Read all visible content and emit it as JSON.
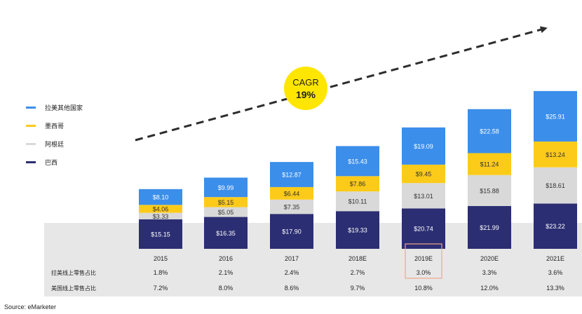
{
  "chart_data": {
    "type": "bar",
    "stacked": true,
    "categories": [
      "2015",
      "2016",
      "2017",
      "2018E",
      "2019E",
      "2020E",
      "2021E"
    ],
    "series": [
      {
        "name": "巴西",
        "color": "#2B2E72",
        "values": [
          15.15,
          16.35,
          17.9,
          19.33,
          20.74,
          21.99,
          23.22
        ],
        "labels": [
          "$15.15",
          "$16.35",
          "$17.90",
          "$19.33",
          "$20.74",
          "$21.99",
          "$23.22"
        ]
      },
      {
        "name": "阿根廷",
        "color": "#D9D9D9",
        "values": [
          3.33,
          5.05,
          7.35,
          10.11,
          13.01,
          15.88,
          18.61
        ],
        "labels": [
          "$3.33",
          "$5.05",
          "$7.35",
          "$10.11",
          "$13.01",
          "$15.88",
          "$18.61"
        ]
      },
      {
        "name": "墨西哥",
        "color": "#FCCB1A",
        "values": [
          4.06,
          5.15,
          6.44,
          7.86,
          9.45,
          11.24,
          13.24
        ],
        "labels": [
          "$4.06",
          "$5.15",
          "$6.44",
          "$7.86",
          "$9.45",
          "$11.24",
          "$13.24"
        ]
      },
      {
        "name": "拉美其他国家",
        "color": "#3B8EEA",
        "values": [
          8.1,
          9.99,
          12.87,
          15.43,
          19.09,
          22.58,
          25.91
        ],
        "labels": [
          "$8.10",
          "$9.99",
          "$12.87",
          "$15.43",
          "$19.09",
          "$22.58",
          "$25.91"
        ]
      }
    ],
    "legend": {
      "placement": "left",
      "order": [
        "拉美其他国家",
        "墨西哥",
        "阿根廷",
        "巴西"
      ]
    },
    "annotation": {
      "line1": "CAGR",
      "line2": "19%"
    },
    "table_rows": [
      {
        "label": "拉美线上零售占比",
        "values": [
          "1.8%",
          "2.1%",
          "2.4%",
          "2.7%",
          "3.0%",
          "3.3%",
          "3.6%"
        ]
      },
      {
        "label": "美国线上零售占比",
        "values": [
          "7.2%",
          "8.0%",
          "8.6%",
          "9.7%",
          "10.8%",
          "12.0%",
          "13.3%"
        ]
      }
    ],
    "highlight_category": "2019E",
    "highlight_color": "#F4A58A",
    "table_bg": "#E7E7E8",
    "source": "Source: eMarketer"
  }
}
